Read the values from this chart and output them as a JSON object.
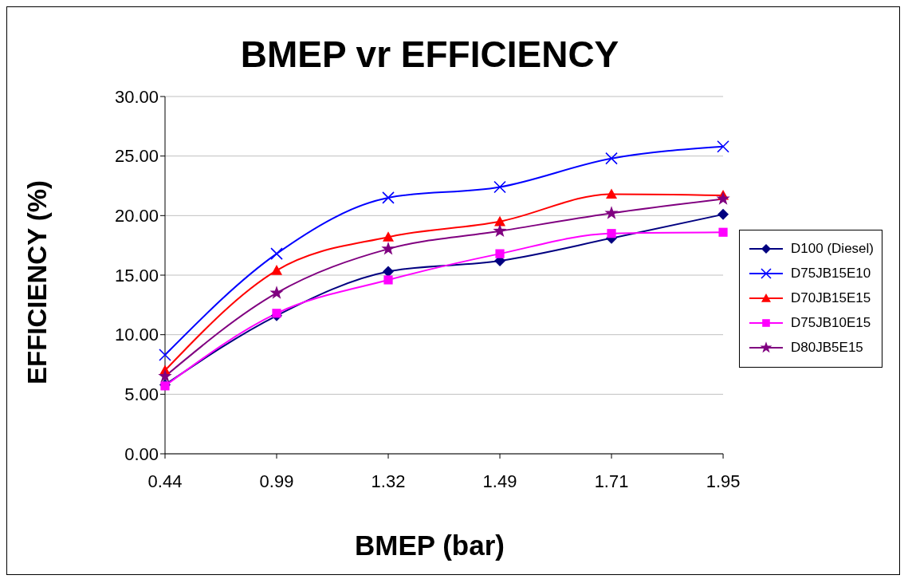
{
  "chart_data": {
    "type": "line",
    "title": "BMEP vr EFFICIENCY",
    "xlabel": "BMEP (bar)",
    "ylabel": "EFFICIENCY (%)",
    "categories": [
      "0.44",
      "0.99",
      "1.32",
      "1.49",
      "1.71",
      "1.95"
    ],
    "ylim": [
      0,
      30
    ],
    "yticks": [
      {
        "value": 0,
        "label": "0.00"
      },
      {
        "value": 5,
        "label": "5.00"
      },
      {
        "value": 10,
        "label": "10.00"
      },
      {
        "value": 15,
        "label": "15.00"
      },
      {
        "value": 20,
        "label": "20.00"
      },
      {
        "value": 25,
        "label": "25.00"
      },
      {
        "value": 30,
        "label": "30.00"
      }
    ],
    "grid": "y",
    "legend": "right",
    "series": [
      {
        "name": "D100 (Diesel)",
        "color": "#000080",
        "marker": "diamond",
        "values": [
          5.8,
          11.6,
          15.3,
          16.2,
          18.1,
          20.1
        ]
      },
      {
        "name": "D75JB15E10",
        "color": "#0000ff",
        "marker": "cross",
        "values": [
          8.3,
          16.8,
          21.5,
          22.4,
          24.8,
          25.8
        ]
      },
      {
        "name": "D70JB15E15",
        "color": "#ff0000",
        "marker": "triangle",
        "values": [
          7.0,
          15.4,
          18.2,
          19.5,
          21.8,
          21.7
        ]
      },
      {
        "name": "D75JB10E15",
        "color": "#ff00ff",
        "marker": "square",
        "values": [
          5.7,
          11.8,
          14.6,
          16.8,
          18.5,
          18.6
        ]
      },
      {
        "name": "D80JB5E15",
        "color": "#800080",
        "marker": "star",
        "values": [
          6.5,
          13.5,
          17.2,
          18.7,
          20.2,
          21.4
        ]
      }
    ]
  }
}
